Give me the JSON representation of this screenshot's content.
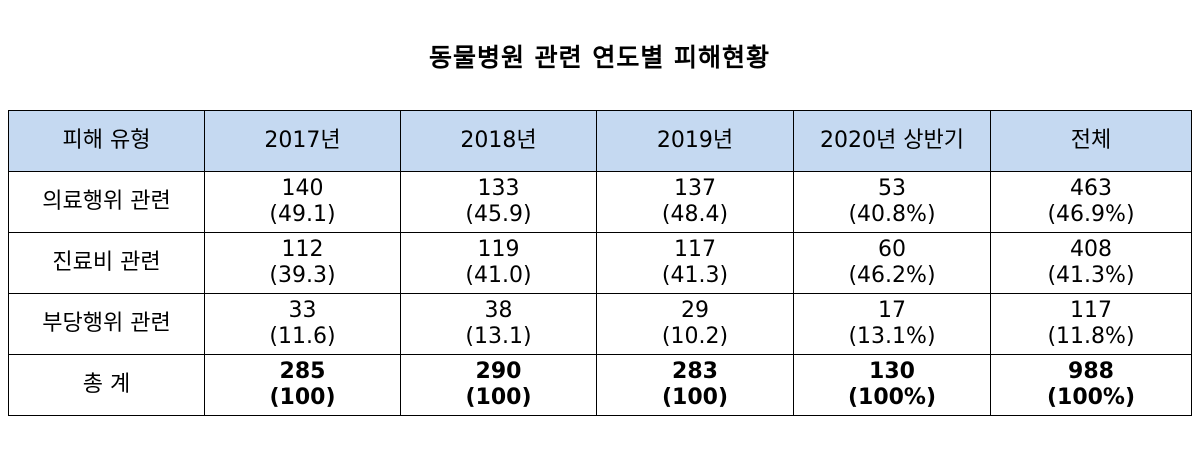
{
  "title": "동물병원 관련 연도별 피해현황",
  "table": {
    "headers": [
      "피해 유형",
      "2017년",
      "2018년",
      "2019년",
      "2020년 상반기",
      "전체"
    ],
    "rows": [
      {
        "label": "의료행위 관련",
        "cells": [
          {
            "count": "140",
            "pct": "(49.1)"
          },
          {
            "count": "133",
            "pct": "(45.9)"
          },
          {
            "count": "137",
            "pct": "(48.4)"
          },
          {
            "count": "53",
            "pct": "(40.8%)"
          },
          {
            "count": "463",
            "pct": "(46.9%)"
          }
        ]
      },
      {
        "label": "진료비 관련",
        "cells": [
          {
            "count": "112",
            "pct": "(39.3)"
          },
          {
            "count": "119",
            "pct": "(41.0)"
          },
          {
            "count": "117",
            "pct": "(41.3)"
          },
          {
            "count": "60",
            "pct": "(46.2%)"
          },
          {
            "count": "408",
            "pct": "(41.3%)"
          }
        ]
      },
      {
        "label": "부당행위 관련",
        "cells": [
          {
            "count": "33",
            "pct": "(11.6)"
          },
          {
            "count": "38",
            "pct": "(13.1)"
          },
          {
            "count": "29",
            "pct": "(10.2)"
          },
          {
            "count": "17",
            "pct": "(13.1%)"
          },
          {
            "count": "117",
            "pct": "(11.8%)"
          }
        ]
      }
    ],
    "total": {
      "label": "총 계",
      "cells": [
        {
          "count": "285",
          "pct": "(100)"
        },
        {
          "count": "290",
          "pct": "(100)"
        },
        {
          "count": "283",
          "pct": "(100)"
        },
        {
          "count": "130",
          "pct": "(100%)"
        },
        {
          "count": "988",
          "pct": "(100%)"
        }
      ]
    },
    "header_bg": "#c5d9f1"
  }
}
